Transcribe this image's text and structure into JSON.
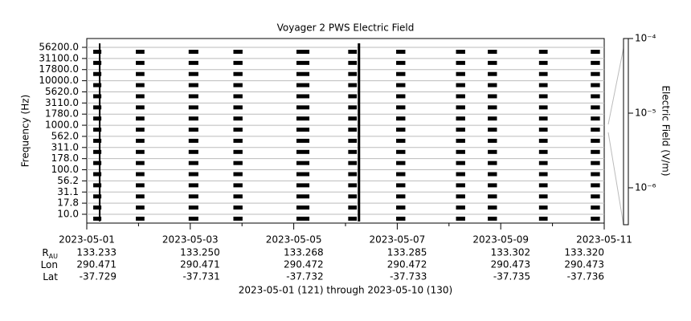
{
  "chart_data": {
    "type": "timeline",
    "title": "Voyager 2 PWS Electric Field",
    "ylabel": "Frequency (Hz)",
    "zlabel": "Electric Field (V/m)",
    "categories": [
      "10.0",
      "17.8",
      "31.1",
      "56.2",
      "100.0",
      "178.0",
      "311.0",
      "562.0",
      "1000.0",
      "1780.0",
      "3110.0",
      "5620.0",
      "10000.0",
      "17800.0",
      "31100.0",
      "56200.0"
    ],
    "passes": [
      {
        "start": "2023-05-01T03:00Z",
        "end": "2023-05-01T06:45Z"
      },
      {
        "start": "2023-05-01T22:45Z",
        "end": "2023-05-02T02:45Z"
      },
      {
        "start": "2023-05-02T23:15Z",
        "end": "2023-05-03T03:45Z"
      },
      {
        "start": "2023-05-03T20:00Z",
        "end": "2023-05-04T00:15Z"
      },
      {
        "start": "2023-05-05T01:15Z",
        "end": "2023-05-05T07:15Z"
      },
      {
        "start": "2023-05-06T01:15Z",
        "end": "2023-05-06T05:15Z"
      },
      {
        "start": "2023-05-06T23:30Z",
        "end": "2023-05-07T03:45Z"
      },
      {
        "start": "2023-05-08T03:15Z",
        "end": "2023-05-08T07:30Z"
      },
      {
        "start": "2023-05-08T18:00Z",
        "end": "2023-05-08T22:15Z"
      },
      {
        "start": "2023-05-09T17:45Z",
        "end": "2023-05-09T21:45Z"
      },
      {
        "start": "2023-05-10T17:45Z",
        "end": "2023-05-10T22:00Z"
      }
    ],
    "spikes": [
      "2023-05-01T06:00Z",
      "2023-05-06T06:15Z"
    ],
    "color": "#000000",
    "xlim": [
      "2023-05-01",
      "2023-05-11"
    ],
    "xticks": [
      "2023-05-01",
      "2023-05-03",
      "2023-05-05",
      "2023-05-07",
      "2023-05-09",
      "2023-05-11"
    ],
    "xminor_ticks": [
      "2023-05-02",
      "2023-05-04",
      "2023-05-06",
      "2023-05-08",
      "2023-05-10"
    ],
    "zlim": [
      3.2e-07,
      0.0001
    ],
    "zticks": [
      {
        "value": 0.0001,
        "label": "10⁻⁴"
      },
      {
        "value": 1e-05,
        "label": "10⁻⁵"
      },
      {
        "value": 1e-06,
        "label": "10⁻⁶"
      }
    ],
    "zscale": "log",
    "grid": true,
    "ephemeris": [
      {
        "label": "R",
        "subscript": "AU",
        "values": [
          "133.233",
          "133.250",
          "133.268",
          "133.285",
          "133.302",
          "133.320"
        ]
      },
      {
        "label": "Lon",
        "values": [
          "290.471",
          "290.471",
          "290.472",
          "290.472",
          "290.473",
          "290.473"
        ]
      },
      {
        "label": "Lat",
        "values": [
          "-37.729",
          "-37.731",
          "-37.732",
          "-37.733",
          "-37.735",
          "-37.736"
        ]
      }
    ],
    "footer": "2023-05-01 (121) through 2023-05-10 (130)"
  }
}
